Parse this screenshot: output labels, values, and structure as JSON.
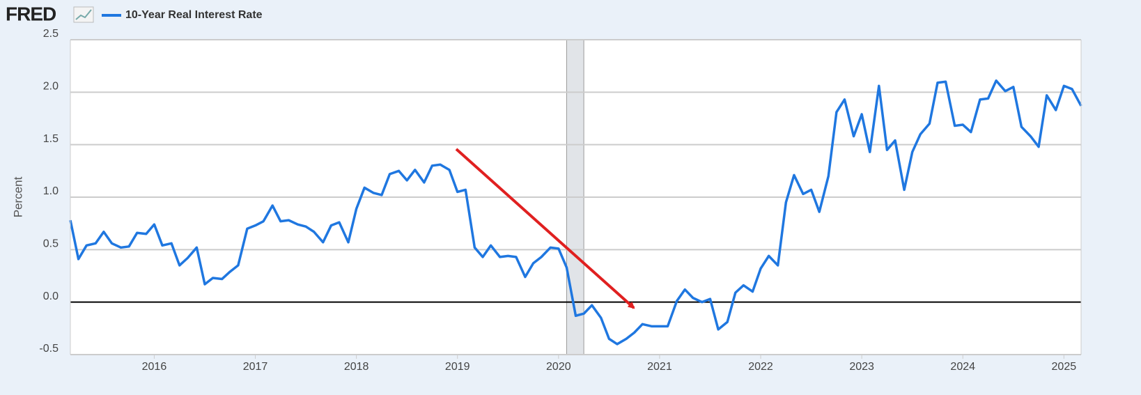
{
  "chart_data": {
    "type": "line",
    "logo": "FRED",
    "y_label": "Percent",
    "x": [
      2015.17,
      2015.25,
      2015.33,
      2015.42,
      2015.5,
      2015.58,
      2015.67,
      2015.75,
      2015.83,
      2015.92,
      2016,
      2016.08,
      2016.17,
      2016.25,
      2016.33,
      2016.42,
      2016.5,
      2016.58,
      2016.67,
      2016.75,
      2016.83,
      2016.92,
      2017,
      2017.08,
      2017.17,
      2017.25,
      2017.33,
      2017.42,
      2017.5,
      2017.58,
      2017.67,
      2017.75,
      2017.83,
      2017.92,
      2018,
      2018.08,
      2018.17,
      2018.25,
      2018.33,
      2018.42,
      2018.5,
      2018.58,
      2018.67,
      2018.75,
      2018.83,
      2018.92,
      2019,
      2019.08,
      2019.17,
      2019.25,
      2019.33,
      2019.42,
      2019.5,
      2019.58,
      2019.67,
      2019.75,
      2019.83,
      2019.92,
      2020,
      2020.08,
      2020.17,
      2020.25,
      2020.33,
      2020.42,
      2020.5,
      2020.58,
      2020.67,
      2020.75,
      2020.83,
      2020.92,
      2021,
      2021.08,
      2021.17,
      2021.25,
      2021.33,
      2021.42,
      2021.5,
      2021.58,
      2021.67,
      2021.75,
      2021.83,
      2021.92,
      2022,
      2022.08,
      2022.17,
      2022.25,
      2022.33,
      2022.42,
      2022.5,
      2022.58,
      2022.67,
      2022.75,
      2022.83,
      2022.92,
      2023,
      2023.08,
      2023.17,
      2023.25,
      2023.33,
      2023.42,
      2023.5,
      2023.58,
      2023.67,
      2023.75,
      2023.83,
      2023.92,
      2024,
      2024.08,
      2024.17,
      2024.25,
      2024.33,
      2024.42,
      2024.5,
      2024.58,
      2024.67,
      2024.75,
      2024.83,
      2024.92,
      2025,
      2025.08,
      2025.17
    ],
    "series": [
      {
        "name": "10-Year Real Interest Rate",
        "color": "#1f77e0",
        "values": [
          0.78,
          0.41,
          0.54,
          0.56,
          0.67,
          0.56,
          0.52,
          0.53,
          0.66,
          0.65,
          0.74,
          0.54,
          0.56,
          0.35,
          0.42,
          0.52,
          0.17,
          0.23,
          0.22,
          0.29,
          0.35,
          0.7,
          0.73,
          0.77,
          0.92,
          0.77,
          0.78,
          0.74,
          0.72,
          0.67,
          0.57,
          0.73,
          0.76,
          0.57,
          0.89,
          1.09,
          1.04,
          1.02,
          1.22,
          1.25,
          1.16,
          1.26,
          1.14,
          1.3,
          1.31,
          1.26,
          1.05,
          1.07,
          0.52,
          0.43,
          0.54,
          0.43,
          0.44,
          0.43,
          0.24,
          0.37,
          0.43,
          0.52,
          0.51,
          0.33,
          -0.13,
          -0.11,
          -0.03,
          -0.15,
          -0.35,
          -0.4,
          -0.35,
          -0.29,
          -0.21,
          -0.23,
          -0.23,
          -0.23,
          0.01,
          0.12,
          0.04,
          0.0,
          0.03,
          -0.26,
          -0.19,
          0.09,
          0.16,
          0.1,
          0.32,
          0.44,
          0.35,
          0.95,
          1.21,
          1.03,
          1.07,
          0.86,
          1.2,
          1.81,
          1.93,
          1.58,
          1.79,
          1.43,
          2.06,
          1.45,
          1.54,
          1.07,
          1.43,
          1.6,
          1.7,
          2.09,
          2.1,
          1.68,
          1.69,
          1.62,
          1.93,
          1.94,
          2.11,
          2.01,
          2.05,
          1.67,
          1.58,
          1.48,
          1.97,
          1.83,
          2.06,
          2.03,
          1.87
        ]
      }
    ],
    "xlim": [
      2015.17,
      2025.17
    ],
    "xticks": [
      2016,
      2017,
      2018,
      2019,
      2020,
      2021,
      2022,
      2023,
      2024,
      2025
    ],
    "ylim": [
      -0.5,
      2.5
    ],
    "yticks": [
      -0.5,
      {
        "value": 0,
        "label": "0.0"
      },
      0.5,
      {
        "value": 1,
        "label": "1.0"
      },
      1.5,
      {
        "value": 2,
        "label": "2.0"
      },
      2.5
    ],
    "recessions": [
      [
        2020.08,
        2020.25
      ]
    ],
    "grid": true,
    "zero_line": true
  }
}
